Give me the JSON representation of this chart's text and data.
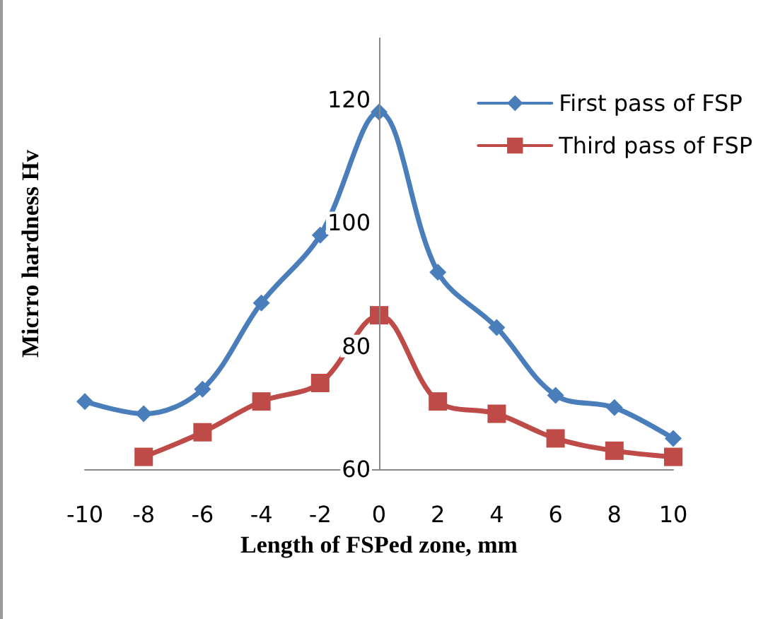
{
  "chart_data": {
    "type": "line",
    "xlabel": "Length of FSPed zone, mm",
    "ylabel": "Micrro hardness Hv",
    "x": [
      -10,
      -8,
      -6,
      -4,
      -2,
      0,
      2,
      4,
      6,
      8,
      10
    ],
    "series": [
      {
        "name": "First pass of FSP",
        "color": "#4a7ebb",
        "marker": "diamond",
        "values": [
          71,
          69,
          73,
          87,
          98,
          118,
          92,
          83,
          72,
          70,
          65
        ]
      },
      {
        "name": "Third pass of FSP",
        "color": "#be4b48",
        "marker": "square",
        "values": [
          null,
          62,
          66,
          71,
          74,
          85,
          71,
          69,
          65,
          63,
          62
        ]
      }
    ],
    "xlim": [
      -10,
      10
    ],
    "xticks": [
      -10,
      -8,
      -6,
      -4,
      -2,
      0,
      2,
      4,
      6,
      8,
      10
    ],
    "ylim": [
      60,
      130
    ],
    "yticks": [
      60,
      80,
      100,
      120
    ],
    "grid": false,
    "legend": "top right"
  }
}
